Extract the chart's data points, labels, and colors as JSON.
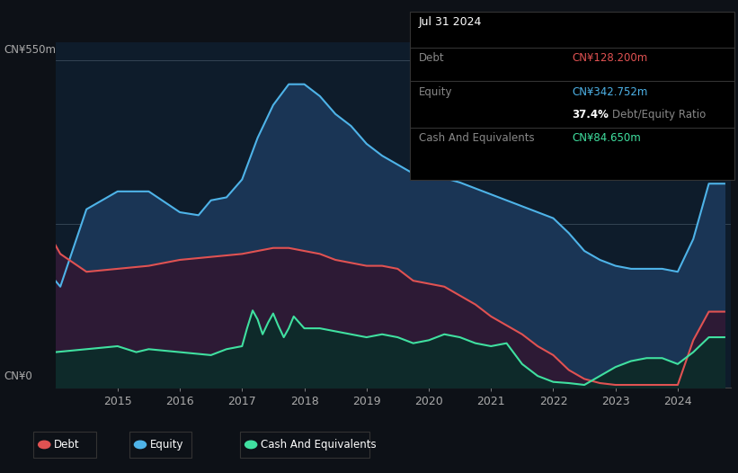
{
  "background_color": "#0d1117",
  "chart_bg": "#0e1c2b",
  "title_box": {
    "date": "Jul 31 2024",
    "debt_value": "CN¥128.200m",
    "equity_value": "CN¥342.752m",
    "ratio": "37.4%",
    "ratio_label": "Debt/Equity Ratio",
    "cash_value": "CN¥84.650m"
  },
  "ylabel_top": "CN¥550m",
  "ylabel_bottom": "CN¥0",
  "xticklabels": [
    "2015",
    "2016",
    "2017",
    "2018",
    "2019",
    "2020",
    "2021",
    "2022",
    "2023",
    "2024"
  ],
  "debt_color": "#e05252",
  "equity_color": "#4eb3e8",
  "cash_color": "#40e0a0",
  "equity_fill": "#1a3555",
  "debt_fill": "#2d1a35",
  "cash_fill": "#0e2a2a",
  "equity_data": {
    "x": [
      2014.0,
      2014.08,
      2014.5,
      2015.0,
      2015.5,
      2016.0,
      2016.3,
      2016.5,
      2016.75,
      2017.0,
      2017.25,
      2017.5,
      2017.75,
      2018.0,
      2018.25,
      2018.5,
      2018.75,
      2019.0,
      2019.25,
      2019.5,
      2019.75,
      2020.0,
      2020.5,
      2021.0,
      2021.5,
      2022.0,
      2022.25,
      2022.5,
      2022.75,
      2023.0,
      2023.25,
      2023.5,
      2023.75,
      2024.0,
      2024.25,
      2024.5,
      2024.75
    ],
    "y": [
      180,
      170,
      300,
      330,
      330,
      295,
      290,
      315,
      320,
      350,
      420,
      475,
      510,
      510,
      490,
      460,
      440,
      410,
      390,
      375,
      360,
      360,
      345,
      325,
      305,
      285,
      260,
      230,
      215,
      205,
      200,
      200,
      200,
      195,
      250,
      343,
      343
    ]
  },
  "debt_data": {
    "x": [
      2014.0,
      2014.08,
      2014.5,
      2015.0,
      2015.5,
      2016.0,
      2016.5,
      2017.0,
      2017.5,
      2017.75,
      2018.0,
      2018.25,
      2018.5,
      2018.75,
      2019.0,
      2019.25,
      2019.5,
      2019.75,
      2020.0,
      2020.25,
      2020.5,
      2020.75,
      2021.0,
      2021.25,
      2021.5,
      2021.75,
      2022.0,
      2022.25,
      2022.5,
      2022.75,
      2023.0,
      2023.5,
      2024.0,
      2024.25,
      2024.5,
      2024.75
    ],
    "y": [
      240,
      225,
      195,
      200,
      205,
      215,
      220,
      225,
      235,
      235,
      230,
      225,
      215,
      210,
      205,
      205,
      200,
      180,
      175,
      170,
      155,
      140,
      120,
      105,
      90,
      70,
      55,
      30,
      15,
      8,
      5,
      5,
      5,
      80,
      128,
      128
    ]
  },
  "cash_data": {
    "x": [
      2014.0,
      2014.5,
      2015.0,
      2015.3,
      2015.5,
      2016.0,
      2016.5,
      2016.75,
      2017.0,
      2017.08,
      2017.17,
      2017.25,
      2017.33,
      2017.42,
      2017.5,
      2017.58,
      2017.67,
      2017.75,
      2017.83,
      2018.0,
      2018.25,
      2018.5,
      2018.75,
      2019.0,
      2019.25,
      2019.5,
      2019.75,
      2020.0,
      2020.25,
      2020.5,
      2020.75,
      2021.0,
      2021.25,
      2021.5,
      2021.75,
      2022.0,
      2022.25,
      2022.5,
      2023.0,
      2023.25,
      2023.5,
      2023.75,
      2024.0,
      2024.25,
      2024.5,
      2024.75
    ],
    "y": [
      60,
      65,
      70,
      60,
      65,
      60,
      55,
      65,
      70,
      100,
      130,
      115,
      90,
      110,
      125,
      105,
      85,
      100,
      120,
      100,
      100,
      95,
      90,
      85,
      90,
      85,
      75,
      80,
      90,
      85,
      75,
      70,
      75,
      40,
      20,
      10,
      8,
      5,
      35,
      45,
      50,
      50,
      40,
      60,
      85,
      85
    ]
  }
}
